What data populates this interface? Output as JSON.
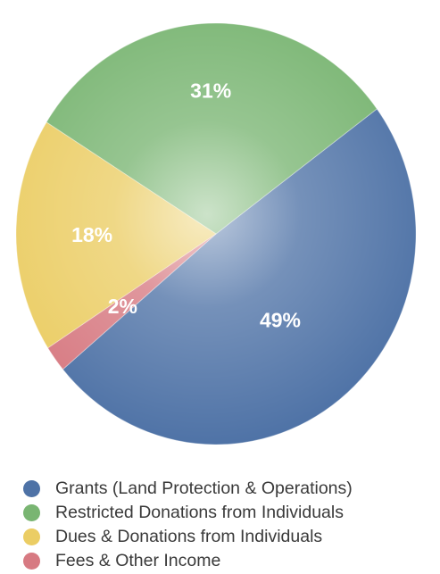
{
  "chart_data": {
    "type": "pie",
    "labels": [
      "Grants (Land Protection & Operations)",
      "Restricted Donations from Individuals",
      "Dues & Donations from Individuals",
      "Fees & Other Income"
    ],
    "values": [
      49,
      31,
      18,
      2
    ],
    "value_labels": [
      "49%",
      "31%",
      "18%",
      "2%"
    ],
    "colors": [
      "#4e72a6",
      "#79b572",
      "#ebcd64",
      "#d77a82"
    ],
    "legend_placement": "bottom"
  },
  "legend": {
    "items": [
      {
        "label": "Grants (Land Protection & Operations)",
        "color": "#4e72a6"
      },
      {
        "label": "Restricted Donations from Individuals",
        "color": "#79b572"
      },
      {
        "label": "Dues & Donations from Individuals",
        "color": "#ebcd64"
      },
      {
        "label": "Fees & Other Income",
        "color": "#d77a82"
      }
    ]
  }
}
